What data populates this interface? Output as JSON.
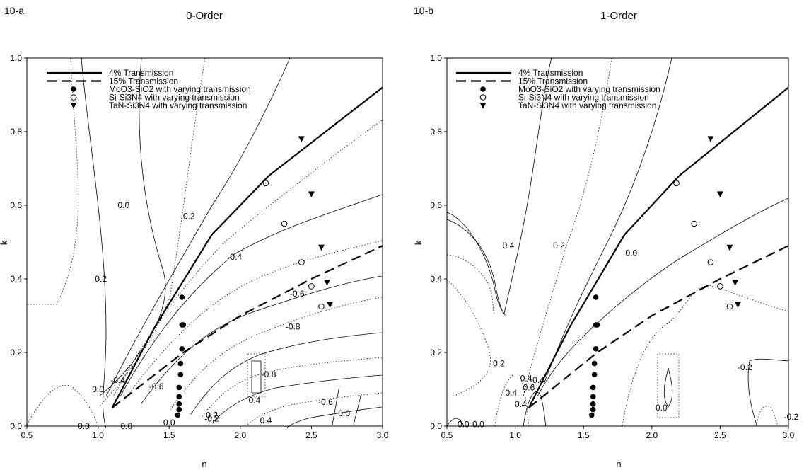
{
  "figure": {
    "panels": [
      {
        "tag": "10-a",
        "title": "0-Order"
      },
      {
        "tag": "10-b",
        "title": "1-Order"
      }
    ]
  },
  "chart_data": [
    {
      "type": "scatter",
      "panel": "10-a",
      "title": "0-Order",
      "xlabel": "n",
      "ylabel": "k",
      "xlim": [
        0.5,
        3.0
      ],
      "ylim": [
        0.0,
        1.0
      ],
      "xticks": [
        "0.5",
        "1.0",
        "1.5",
        "2.0",
        "2.5",
        "3.0"
      ],
      "yticks": [
        "0.0",
        "0.2",
        "0.4",
        "0.6",
        "0.8",
        "1.0"
      ],
      "legend_position": "top-left",
      "series": [
        {
          "name": "4% Transmission",
          "style": "solid",
          "x": [
            1.1,
            1.4,
            1.8,
            2.2,
            2.6,
            3.0
          ],
          "y": [
            0.05,
            0.27,
            0.52,
            0.68,
            0.8,
            0.92
          ]
        },
        {
          "name": "15% Transmission",
          "style": "dashed",
          "x": [
            1.1,
            1.6,
            2.0,
            2.5,
            3.0
          ],
          "y": [
            0.05,
            0.2,
            0.3,
            0.4,
            0.49
          ]
        },
        {
          "name": "MoO3-SiO2 with varying transmission",
          "marker": "filled-circle",
          "x": [
            1.56,
            1.57,
            1.57,
            1.57,
            1.57,
            1.58,
            1.58,
            1.59,
            1.59,
            1.59,
            1.6
          ],
          "y": [
            0.03,
            0.045,
            0.06,
            0.08,
            0.105,
            0.14,
            0.17,
            0.21,
            0.275,
            0.35,
            0.275
          ]
        },
        {
          "name": "Si-Si3N4 with varying transmission",
          "marker": "open-circle",
          "x": [
            2.18,
            2.31,
            2.43,
            2.5,
            2.57
          ],
          "y": [
            0.66,
            0.55,
            0.445,
            0.38,
            0.325
          ]
        },
        {
          "name": "TaN-Si3N4 with varying transmission",
          "marker": "filled-triangle-down",
          "x": [
            2.43,
            2.5,
            2.57,
            2.61,
            2.63
          ],
          "y": [
            0.78,
            0.63,
            0.485,
            0.39,
            0.33
          ]
        }
      ],
      "contour_labels": [
        {
          "text": "0.0",
          "x": 1.18,
          "y": 0.6
        },
        {
          "text": "-0.2",
          "x": 1.63,
          "y": 0.57
        },
        {
          "text": "0.2",
          "x": 1.02,
          "y": 0.4
        },
        {
          "text": "-0.4",
          "x": 1.96,
          "y": 0.46
        },
        {
          "text": "-0.6",
          "x": 2.4,
          "y": 0.36
        },
        {
          "text": "-0.8",
          "x": 2.37,
          "y": 0.27
        },
        {
          "text": "-0.4",
          "x": 1.14,
          "y": 0.125
        },
        {
          "text": "0.0",
          "x": 1.0,
          "y": 0.1
        },
        {
          "text": "-0.6",
          "x": 1.41,
          "y": 0.108
        },
        {
          "text": "-0.8",
          "x": 2.2,
          "y": 0.14
        },
        {
          "text": "-0.2",
          "x": 1.8,
          "y": 0.02
        },
        {
          "text": "0.4",
          "x": 2.1,
          "y": 0.07
        },
        {
          "text": "0.2",
          "x": 1.8,
          "y": 0.03
        },
        {
          "text": "-0.6",
          "x": 2.6,
          "y": 0.065
        },
        {
          "text": "0.0",
          "x": 2.73,
          "y": 0.035
        },
        {
          "text": "0.4",
          "x": 2.18,
          "y": 0.015
        },
        {
          "text": "0.0",
          "x": 0.9,
          "y": 0.0
        },
        {
          "text": "0.0",
          "x": 1.2,
          "y": 0.0
        },
        {
          "text": "0.0",
          "x": 1.5,
          "y": 0.01
        }
      ]
    },
    {
      "type": "scatter",
      "panel": "10-b",
      "title": "1-Order",
      "xlabel": "n",
      "ylabel": "k",
      "xlim": [
        0.5,
        3.0
      ],
      "ylim": [
        0.0,
        1.0
      ],
      "xticks": [
        "0.5",
        "1.0",
        "1.5",
        "2.0",
        "2.5",
        "3.0"
      ],
      "yticks": [
        "0.0",
        "0.2",
        "0.4",
        "0.6",
        "0.8",
        "1.0"
      ],
      "legend_position": "top-left",
      "series": [
        {
          "name": "4% Transmission",
          "style": "solid",
          "x": [
            1.1,
            1.4,
            1.8,
            2.2,
            2.6,
            3.0
          ],
          "y": [
            0.05,
            0.27,
            0.52,
            0.68,
            0.8,
            0.92
          ]
        },
        {
          "name": "15% Transmission",
          "style": "dashed",
          "x": [
            1.1,
            1.6,
            2.0,
            2.5,
            3.0
          ],
          "y": [
            0.05,
            0.2,
            0.3,
            0.4,
            0.49
          ]
        },
        {
          "name": "MoO3-SiO2 with varying transmission",
          "marker": "filled-circle",
          "x": [
            1.56,
            1.57,
            1.57,
            1.57,
            1.57,
            1.58,
            1.58,
            1.59,
            1.59,
            1.59,
            1.6
          ],
          "y": [
            0.03,
            0.045,
            0.06,
            0.08,
            0.105,
            0.14,
            0.17,
            0.21,
            0.275,
            0.35,
            0.275
          ]
        },
        {
          "name": "Si-Si3N4 with varying transmission",
          "marker": "open-circle",
          "x": [
            2.18,
            2.31,
            2.43,
            2.5,
            2.57
          ],
          "y": [
            0.66,
            0.55,
            0.445,
            0.38,
            0.325
          ]
        },
        {
          "name": "TaN-Si3N4 with varying transmission",
          "marker": "filled-triangle-down",
          "x": [
            2.43,
            2.5,
            2.57,
            2.61,
            2.63
          ],
          "y": [
            0.78,
            0.63,
            0.485,
            0.39,
            0.33
          ]
        }
      ],
      "contour_labels": [
        {
          "text": "0.4",
          "x": 0.95,
          "y": 0.49
        },
        {
          "text": "0.2",
          "x": 1.32,
          "y": 0.49
        },
        {
          "text": "0.0",
          "x": 1.85,
          "y": 0.47
        },
        {
          "text": "0.2",
          "x": 0.88,
          "y": 0.17
        },
        {
          "text": "0.4",
          "x": 0.97,
          "y": 0.09
        },
        {
          "text": "-0.4",
          "x": 1.07,
          "y": 0.13
        },
        {
          "text": "-0.4",
          "x": 1.16,
          "y": 0.125
        },
        {
          "text": "0.6",
          "x": 1.1,
          "y": 0.105
        },
        {
          "text": "0.4",
          "x": 1.04,
          "y": 0.06
        },
        {
          "text": "0.0",
          "x": 0.62,
          "y": 0.005
        },
        {
          "text": "0.0",
          "x": 0.73,
          "y": 0.005
        },
        {
          "text": "0.0",
          "x": 2.07,
          "y": 0.05
        },
        {
          "text": "-0.2",
          "x": 2.68,
          "y": 0.16
        },
        {
          "text": "-0.2",
          "x": 3.02,
          "y": 0.025
        }
      ]
    }
  ]
}
